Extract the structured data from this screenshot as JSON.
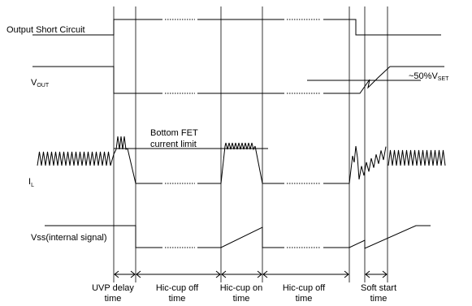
{
  "signals": {
    "short": {
      "label": "Output Short Circuit"
    },
    "vout": {
      "label_main": "V",
      "label_sub": "OUT"
    },
    "il": {
      "label_main": "I",
      "label_sub": "L"
    },
    "vss": {
      "label": "Vss(internal signal)"
    }
  },
  "annotations": {
    "bottom_fet_line1": "Bottom FET",
    "bottom_fet_line2": "current limit",
    "pct_main": "~50%V",
    "pct_sub": "SET"
  },
  "segments": [
    {
      "line1": "UVP delay",
      "line2": "time"
    },
    {
      "line1": "Hic-cup off",
      "line2": "time"
    },
    {
      "line1": "Hic-cup on",
      "line2": "time"
    },
    {
      "line1": "Hic-cup off",
      "line2": "time"
    },
    {
      "line1": "Soft start",
      "line2": "time"
    }
  ]
}
